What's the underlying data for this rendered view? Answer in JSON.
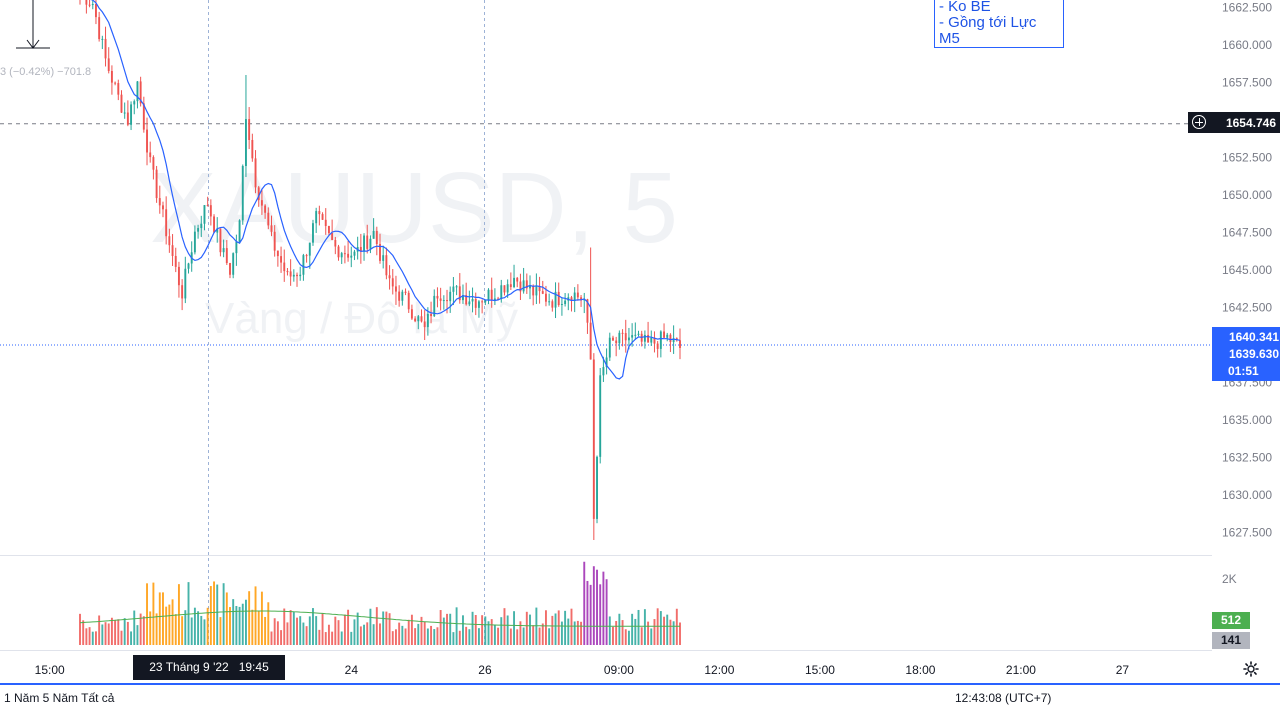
{
  "chart_data": {
    "type": "candlestick",
    "symbol_watermark": "XAUUSD, 5",
    "symbol_subtitle": "Vàng / Đô la Mỹ",
    "interval": "5",
    "y_axis": {
      "ticks": [
        "1662.500",
        "1660.000",
        "1657.500",
        "1652.500",
        "1650.000",
        "1647.500",
        "1645.000",
        "1642.500",
        "1637.500",
        "1635.000",
        "1632.500",
        "1630.000",
        "1627.500"
      ],
      "ylim": [
        1626.0,
        1663.0
      ]
    },
    "x_axis": {
      "ticks": [
        {
          "label": "15:00",
          "pos": 0.0388
        },
        {
          "label": "24",
          "pos": 0.2745
        },
        {
          "label": "26",
          "pos": 0.3789
        },
        {
          "label": "09:00",
          "pos": 0.4835
        },
        {
          "label": "12:00",
          "pos": 0.562
        },
        {
          "label": "15:00",
          "pos": 0.6406
        },
        {
          "label": "18:00",
          "pos": 0.7191
        },
        {
          "label": "21:00",
          "pos": 0.7976
        },
        {
          "label": "27",
          "pos": 0.8769
        }
      ]
    },
    "crosshair": {
      "time_label": "23 Tháng 9 '22   19:45",
      "price_label": "1654.746"
    },
    "current_price": {
      "price": "1640.341",
      "bid": "1639.630",
      "countdown": "01:51",
      "value": 1640.0
    },
    "volume": {
      "max_label": "2K",
      "tag_up": "512",
      "tag_ma": "141"
    },
    "legend_fragment": "3 (−0.42%) −701.8",
    "note_lines": [
      "- Ko BE",
      "- Gồng tới Lực",
      "M5"
    ],
    "ohlc_anchors": [
      [
        0,
        1663.5
      ],
      [
        4,
        1662.8
      ],
      [
        8,
        1659.0
      ],
      [
        12,
        1656.5
      ],
      [
        15,
        1655.0
      ],
      [
        18,
        1657.5
      ],
      [
        22,
        1652.0
      ],
      [
        26,
        1648.5
      ],
      [
        30,
        1645.0
      ],
      [
        32,
        1643.5
      ],
      [
        36,
        1647.5
      ],
      [
        40,
        1649.5
      ],
      [
        44,
        1646.5
      ],
      [
        47,
        1645.0
      ],
      [
        50,
        1648.0
      ],
      [
        52,
        1655.5
      ],
      [
        55,
        1651.0
      ],
      [
        60,
        1647.0
      ],
      [
        65,
        1644.5
      ],
      [
        69,
        1645.0
      ],
      [
        74,
        1648.5
      ],
      [
        80,
        1646.5
      ],
      [
        86,
        1646.0
      ],
      [
        92,
        1647.5
      ],
      [
        97,
        1644.0
      ],
      [
        102,
        1643.0
      ],
      [
        108,
        1641.0
      ],
      [
        112,
        1643.5
      ],
      [
        118,
        1643.5
      ],
      [
        124,
        1643.0
      ],
      [
        130,
        1643.5
      ],
      [
        136,
        1644.5
      ],
      [
        142,
        1643.5
      ],
      [
        148,
        1643.0
      ],
      [
        154,
        1643.5
      ],
      [
        158,
        1643.0
      ],
      [
        160,
        1639.0
      ],
      [
        161,
        1628.5
      ],
      [
        163,
        1637.5
      ],
      [
        166,
        1640.0
      ],
      [
        172,
        1640.5
      ],
      [
        178,
        1640.0
      ],
      [
        184,
        1640.5
      ],
      [
        188,
        1639.8
      ]
    ],
    "bar_count": 189,
    "colors": {
      "up": "#26a69a",
      "down": "#ef5350",
      "ma": "#2962ff",
      "vol_up": "#26a69a",
      "vol_down": "#ef5350"
    }
  },
  "bottom_bar": {
    "left": "1 Năm   5 Năm   Tất cả",
    "right": "12:43:08 (UTC+7)"
  }
}
